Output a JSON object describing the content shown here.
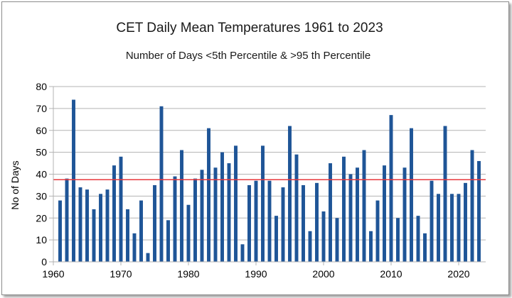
{
  "chart_data": {
    "type": "bar",
    "title": "CET Daily Mean Temperatures 1961 to 2023",
    "subtitle": "Number of Days <5th Percentile & >95 th Percentile",
    "xlabel": "",
    "ylabel": "No of Days",
    "xlim": [
      1960,
      2024
    ],
    "ylim": [
      0,
      80
    ],
    "yticks": [
      "0",
      "10",
      "20",
      "30",
      "40",
      "50",
      "60",
      "70",
      "80"
    ],
    "xticks": [
      "1960",
      "1970",
      "1980",
      "1990",
      "2000",
      "2010",
      "2020"
    ],
    "grid": true,
    "legend": "none",
    "bar_color": "#1f5597",
    "reference_line": {
      "value": 37.5,
      "color": "#e8383d"
    },
    "x": [
      1961,
      1962,
      1963,
      1964,
      1965,
      1966,
      1967,
      1968,
      1969,
      1970,
      1971,
      1972,
      1973,
      1974,
      1975,
      1976,
      1977,
      1978,
      1979,
      1980,
      1981,
      1982,
      1983,
      1984,
      1985,
      1986,
      1987,
      1988,
      1989,
      1990,
      1991,
      1992,
      1993,
      1994,
      1995,
      1996,
      1997,
      1998,
      1999,
      2000,
      2001,
      2002,
      2003,
      2004,
      2005,
      2006,
      2007,
      2008,
      2009,
      2010,
      2011,
      2012,
      2013,
      2014,
      2015,
      2016,
      2017,
      2018,
      2019,
      2020,
      2021,
      2022,
      2023
    ],
    "values": [
      28,
      38,
      74,
      34,
      33,
      24,
      31,
      33,
      44,
      48,
      24,
      13,
      28,
      4,
      35,
      71,
      19,
      39,
      51,
      26,
      38,
      42,
      61,
      43,
      50,
      45,
      53,
      8,
      35,
      37,
      53,
      37,
      21,
      34,
      62,
      49,
      35,
      14,
      36,
      23,
      45,
      20,
      48,
      40,
      43,
      51,
      14,
      28,
      44,
      67,
      20,
      43,
      61,
      21,
      13,
      37,
      31,
      62,
      31,
      31,
      36,
      51,
      46
    ]
  }
}
